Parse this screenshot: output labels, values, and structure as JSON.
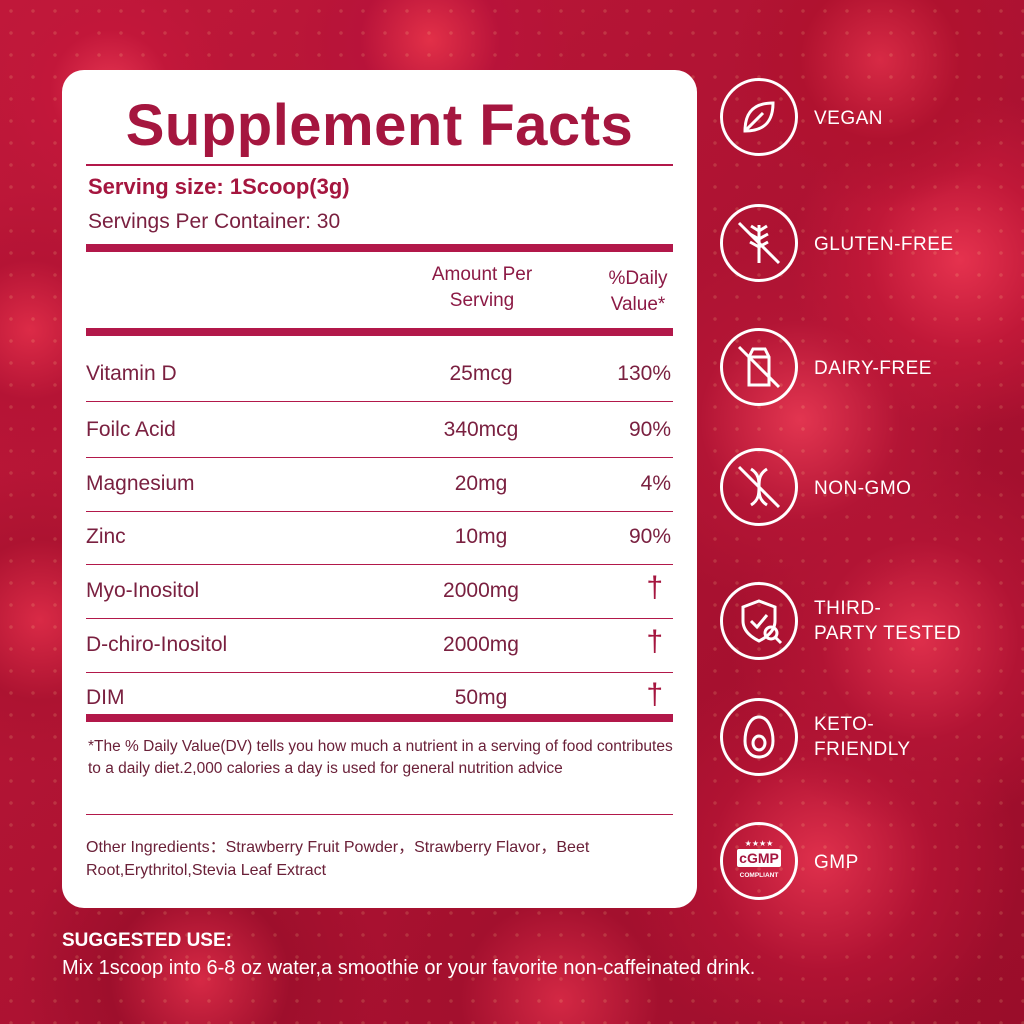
{
  "facts": {
    "title": "Supplement Facts",
    "serving_size": "Serving size: 1Scoop(3g)",
    "servings_per_container": "Servings Per Container: 30",
    "col_amount_line1": "Amount Per",
    "col_amount_line2": "Serving",
    "col_dv_line1": "%Daily",
    "col_dv_line2": "Value*",
    "rows": [
      {
        "name": "Vitamin D",
        "amount": "25mcg",
        "dv": "130%"
      },
      {
        "name": "Foilc Acid",
        "amount": "340mcg",
        "dv": "90%"
      },
      {
        "name": "Magnesium",
        "amount": "20mg",
        "dv": "4%"
      },
      {
        "name": "Zinc",
        "amount": "10mg",
        "dv": "90%"
      },
      {
        "name": "Myo-Inositol",
        "amount": "2000mg",
        "dv": "†"
      },
      {
        "name": "D-chiro-Inositol",
        "amount": "2000mg",
        "dv": "†"
      },
      {
        "name": "DIM",
        "amount": "50mg",
        "dv": "†"
      }
    ],
    "footnote": "*The % Daily Value(DV) tells you how much a nutrient in a serving of food contributes to a daily diet.2,000 calories a day is used for general nutrition advice",
    "other_ingredients": "Other Ingredients：Strawberry Fruit Powder，Strawberry Flavor，Beet Root,Erythritol,Stevia Leaf Extract"
  },
  "badges": [
    {
      "icon": "leaf-icon",
      "line1": "VEGAN",
      "line2": ""
    },
    {
      "icon": "no-wheat-icon",
      "line1": "GLUTEN-FREE",
      "line2": ""
    },
    {
      "icon": "no-milk-carton-icon",
      "line1": "DAIRY-FREE",
      "line2": ""
    },
    {
      "icon": "no-dna-icon",
      "line1": "NON-GMO",
      "line2": ""
    },
    {
      "icon": "shield-check-icon",
      "line1": "THIRD-",
      "line2": "PARTY TESTED"
    },
    {
      "icon": "avocado-icon",
      "line1": "KETO-",
      "line2": "FRIENDLY"
    },
    {
      "icon": "cgmp-seal-icon",
      "line1": "GMP",
      "line2": "",
      "seal_text": "cGMP",
      "seal_sub": "COMPLIANT",
      "seal_stars": "★★★★"
    }
  ],
  "suggested_use": {
    "heading": "SUGGESTED USE:",
    "text": "Mix 1scoop into 6-8 oz water,a smoothie or your favorite non-caffeinated drink."
  },
  "colors": {
    "accent": "#a5163f",
    "text": "#7a2040",
    "background": "#b2153a"
  }
}
